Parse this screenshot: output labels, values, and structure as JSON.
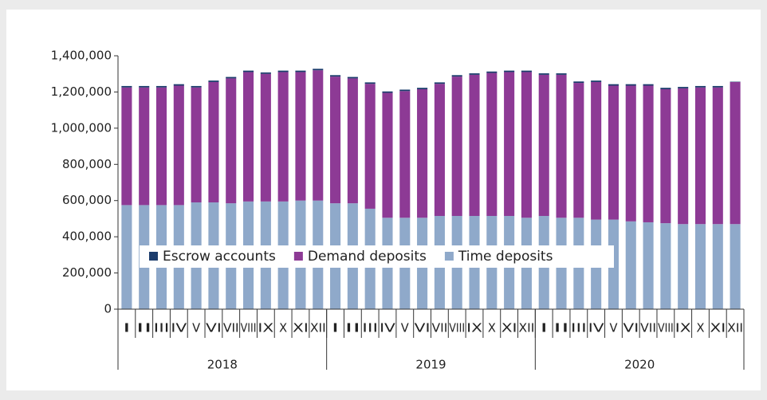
{
  "chart_data": {
    "type": "stacked_bar",
    "categories": [
      "I",
      "II",
      "III",
      "IV",
      "V",
      "VI",
      "VII",
      "VIII",
      "IX",
      "X",
      "XI",
      "XII",
      "I",
      "II",
      "III",
      "IV",
      "V",
      "VI",
      "VII",
      "VIII",
      "IX",
      "X",
      "XI",
      "XII",
      "I",
      "II",
      "III",
      "IV",
      "V",
      "VI",
      "VII",
      "VIII",
      "IX",
      "X",
      "XI",
      "XII"
    ],
    "groups": [
      "2018",
      "2019",
      "2020"
    ],
    "series": [
      {
        "name": "Time deposits",
        "color": "#8fa9ca",
        "values": [
          575000,
          575000,
          575000,
          575000,
          590000,
          590000,
          585000,
          595000,
          595000,
          595000,
          600000,
          600000,
          585000,
          585000,
          555000,
          505000,
          505000,
          505000,
          515000,
          515000,
          515000,
          515000,
          515000,
          505000,
          515000,
          505000,
          505000,
          495000,
          495000,
          485000,
          480000,
          475000,
          470000,
          470000,
          470000,
          470000
        ]
      },
      {
        "name": "Demand deposits",
        "color": "#8d3a95",
        "values": [
          650000,
          650000,
          650000,
          660000,
          635000,
          665000,
          690000,
          715000,
          705000,
          715000,
          710000,
          720000,
          700000,
          690000,
          690000,
          690000,
          700000,
          710000,
          730000,
          770000,
          780000,
          790000,
          795000,
          805000,
          780000,
          790000,
          745000,
          760000,
          740000,
          750000,
          755000,
          740000,
          750000,
          755000,
          755000,
          785000
        ]
      },
      {
        "name": "Escrow accounts",
        "color": "#1c3c6c",
        "values": [
          8000,
          8000,
          8000,
          8000,
          8000,
          8000,
          8000,
          8000,
          8000,
          8000,
          8000,
          8000,
          8000,
          8000,
          8000,
          8000,
          8000,
          8000,
          8000,
          8000,
          8000,
          8000,
          8000,
          8000,
          8000,
          8000,
          8000,
          8000,
          8000,
          8000,
          8000,
          8000,
          8000,
          8000,
          8000,
          2000
        ]
      }
    ],
    "ylim": [
      0,
      1400000
    ],
    "yticks": [
      0,
      {
        "value": 200000,
        "label": "200,000"
      },
      {
        "value": 400000,
        "label": "400,000"
      },
      {
        "value": 600000,
        "label": "600,000"
      },
      {
        "value": 800000,
        "label": "800,000"
      },
      {
        "value": 1000000,
        "label": "1,000,000"
      },
      {
        "value": 1200000,
        "label": "1,200,000"
      },
      {
        "value": 1400000,
        "label": "1,400,000"
      }
    ],
    "legend": "bottom-left"
  }
}
